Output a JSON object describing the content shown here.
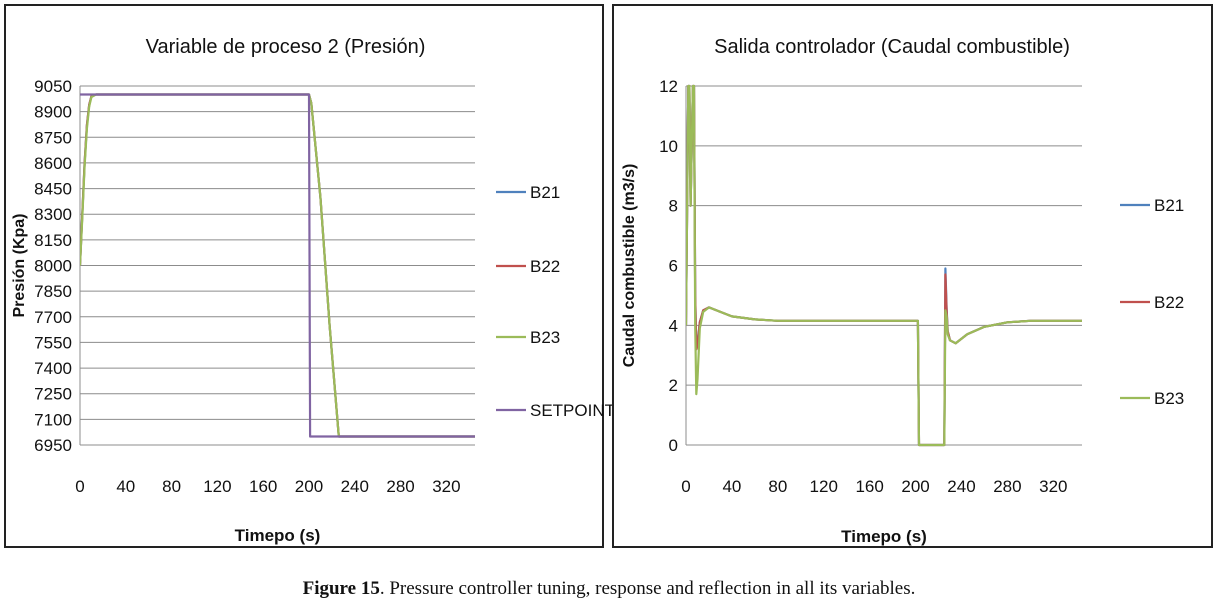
{
  "chart_data": [
    {
      "type": "line",
      "title": "Variable de proceso  2 (Presión)",
      "xlabel": "Timepo (s)",
      "ylabel": "Presión (Kpa)",
      "xlim": [
        0,
        345
      ],
      "ylim": [
        6950,
        9050
      ],
      "xticks": [
        0,
        40,
        80,
        120,
        160,
        200,
        240,
        280,
        320
      ],
      "yticks": [
        9050,
        8900,
        8750,
        8600,
        8450,
        8300,
        8150,
        8000,
        7850,
        7700,
        7550,
        7400,
        7250,
        7100,
        6950
      ],
      "grid": "horizontal",
      "legend": "right",
      "series": [
        {
          "name": "B21",
          "color": "#4f81bd",
          "x": [
            0,
            2,
            4,
            6,
            8,
            10,
            14,
            20,
            200,
            202,
            210,
            218,
            226,
            230,
            345
          ],
          "y": [
            8000,
            8300,
            8600,
            8820,
            8940,
            8990,
            9000,
            9000,
            9000,
            8950,
            8400,
            7650,
            7000,
            7000,
            7000
          ]
        },
        {
          "name": "B22",
          "color": "#c0504d",
          "x": [
            0,
            2,
            4,
            6,
            8,
            10,
            14,
            20,
            200,
            202,
            210,
            218,
            226,
            230,
            345
          ],
          "y": [
            8000,
            8300,
            8600,
            8820,
            8940,
            8990,
            9000,
            9000,
            9000,
            8950,
            8400,
            7650,
            7000,
            7000,
            7000
          ]
        },
        {
          "name": "B23",
          "color": "#9bbb59",
          "x": [
            0,
            2,
            4,
            6,
            8,
            10,
            14,
            20,
            200,
            202,
            210,
            218,
            226,
            230,
            345
          ],
          "y": [
            8000,
            8280,
            8580,
            8800,
            8930,
            8985,
            9000,
            9000,
            9000,
            8950,
            8400,
            7650,
            7000,
            7000,
            7000
          ]
        },
        {
          "name": "SETPOINT",
          "color": "#8064a2",
          "x": [
            0,
            2,
            200,
            201,
            345
          ],
          "y": [
            9000,
            9000,
            9000,
            7000,
            7000
          ]
        }
      ]
    },
    {
      "type": "line",
      "title": "Salida controlador (Caudal combustible)",
      "xlabel": "Timepo (s)",
      "ylabel": "Caudal combustible (m3/s)",
      "xlim": [
        0,
        345
      ],
      "ylim": [
        0,
        12
      ],
      "xticks": [
        0,
        40,
        80,
        120,
        160,
        200,
        240,
        280,
        320
      ],
      "yticks": [
        12,
        10,
        8,
        6,
        4,
        2,
        0
      ],
      "grid": "horizontal",
      "legend": "right",
      "series": [
        {
          "name": "B21",
          "color": "#4f81bd",
          "x": [
            0,
            2,
            3,
            4,
            6,
            7,
            8,
            9,
            10,
            12,
            15,
            20,
            30,
            40,
            60,
            80,
            120,
            200,
            202,
            203,
            225,
            226,
            227,
            228,
            230,
            235,
            245,
            260,
            280,
            300,
            345
          ],
          "y": [
            4.0,
            12,
            12,
            8,
            12,
            12,
            5,
            3.3,
            3.4,
            4.1,
            4.5,
            4.6,
            4.45,
            4.3,
            4.2,
            4.15,
            4.15,
            4.15,
            4.15,
            0,
            0,
            5.9,
            4.6,
            3.8,
            3.5,
            3.4,
            3.7,
            3.95,
            4.1,
            4.15,
            4.15
          ]
        },
        {
          "name": "B22",
          "color": "#c0504d",
          "x": [
            0,
            2,
            3,
            4,
            6,
            7,
            8,
            9,
            10,
            12,
            15,
            20,
            30,
            40,
            60,
            80,
            120,
            200,
            202,
            203,
            225,
            226,
            227,
            228,
            230,
            235,
            245,
            260,
            280,
            300,
            345
          ],
          "y": [
            4.0,
            12,
            12,
            8,
            12,
            12,
            5,
            3.2,
            3.3,
            4.1,
            4.5,
            4.6,
            4.45,
            4.3,
            4.2,
            4.15,
            4.15,
            4.15,
            4.15,
            0,
            0,
            5.7,
            4.5,
            3.8,
            3.5,
            3.4,
            3.7,
            3.95,
            4.1,
            4.15,
            4.15
          ]
        },
        {
          "name": "B23",
          "color": "#9bbb59",
          "x": [
            0,
            2,
            3,
            4,
            6,
            7,
            8,
            9,
            10,
            12,
            15,
            20,
            30,
            40,
            60,
            80,
            120,
            200,
            202,
            203,
            225,
            226,
            227,
            228,
            230,
            235,
            245,
            260,
            280,
            300,
            345
          ],
          "y": [
            4.0,
            12,
            12,
            8,
            12,
            12,
            4,
            1.7,
            2.2,
            3.9,
            4.45,
            4.6,
            4.45,
            4.3,
            4.2,
            4.15,
            4.15,
            4.15,
            4.15,
            0,
            0,
            4.5,
            4.3,
            3.7,
            3.5,
            3.4,
            3.7,
            3.95,
            4.1,
            4.15,
            4.15
          ]
        }
      ]
    }
  ],
  "caption": {
    "label": "Figure 15",
    "text": ". Pressure controller tuning, response and reflection in all its variables."
  }
}
